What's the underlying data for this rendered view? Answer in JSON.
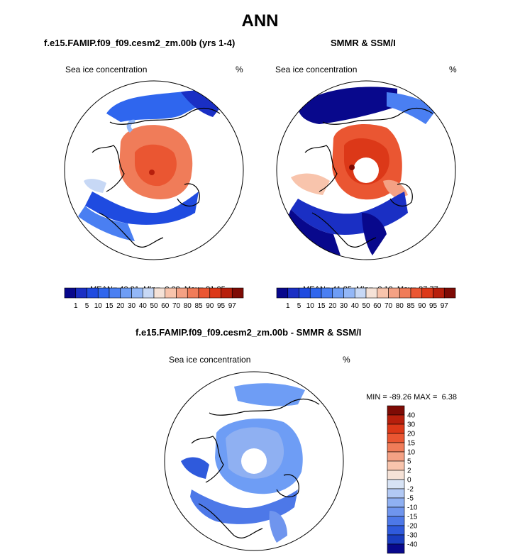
{
  "page": {
    "title": "ANN"
  },
  "chart_data": [
    {
      "type": "heatmap",
      "title": "f.e15.FAMIP.f09_f09.cesm2_zm.00b (yrs 1-4)",
      "subtitle_left": "Sea ice concentration",
      "units": "%",
      "stats": {
        "mean_label": "MEAN=",
        "mean": "40.91",
        "min_label": "Min=",
        "min": "0.00",
        "max_label": "Max=",
        "max": "91.05"
      },
      "colorbar": {
        "orientation": "horizontal",
        "levels": [
          "1",
          "5",
          "10",
          "15",
          "20",
          "30",
          "40",
          "50",
          "60",
          "70",
          "80",
          "85",
          "90",
          "95",
          "97"
        ],
        "colors": [
          "#08088c",
          "#1a2fc4",
          "#1f4be0",
          "#2f66ee",
          "#4a7ff2",
          "#6e9df5",
          "#93b7f7",
          "#c7d8f5",
          "#f5e2d7",
          "#f8c4ac",
          "#f4a184",
          "#f07c59",
          "#ea5632",
          "#dc3818",
          "#b71f0c",
          "#7e0b05"
        ]
      }
    },
    {
      "type": "heatmap",
      "title": "SMMR & SSM/I",
      "subtitle_left": "Sea ice concentration",
      "units": "%",
      "stats": {
        "mean_label": "MEAN=",
        "mean": "41.85",
        "min_label": "Min=",
        "min": "0.10",
        "max_label": "Max=",
        "max": "97.77"
      },
      "colorbar": {
        "orientation": "horizontal",
        "levels": [
          "1",
          "5",
          "10",
          "15",
          "20",
          "30",
          "40",
          "50",
          "60",
          "70",
          "80",
          "85",
          "90",
          "95",
          "97"
        ],
        "colors": [
          "#08088c",
          "#1a2fc4",
          "#1f4be0",
          "#2f66ee",
          "#4a7ff2",
          "#6e9df5",
          "#93b7f7",
          "#c7d8f5",
          "#f5e2d7",
          "#f8c4ac",
          "#f4a184",
          "#f07c59",
          "#ea5632",
          "#dc3818",
          "#b71f0c",
          "#7e0b05"
        ]
      }
    },
    {
      "type": "heatmap",
      "title": "f.e15.FAMIP.f09_f09.cesm2_zm.00b - SMMR & SSM/I",
      "subtitle_left": "Sea ice concentration",
      "units": "%",
      "stats": {
        "min_label": "MIN =",
        "min": "-89.26",
        "max_label": "MAX =",
        "max": "6.38"
      },
      "colorbar": {
        "orientation": "vertical",
        "levels": [
          "40",
          "30",
          "20",
          "15",
          "10",
          "5",
          "2",
          "0",
          "-2",
          "-5",
          "-10",
          "-15",
          "-20",
          "-30",
          "-40"
        ],
        "colors": [
          "#7e0b05",
          "#b71f0c",
          "#dc3818",
          "#ea5632",
          "#f07c59",
          "#f4a184",
          "#f8c4ac",
          "#f5e2d7",
          "#d7e3f5",
          "#b2c9f4",
          "#8fb0f2",
          "#6f95ee",
          "#4d78e8",
          "#2f5adc",
          "#1a3dc0",
          "#08088c"
        ]
      }
    }
  ],
  "colors": {
    "land_line": "#000000",
    "ocean": "#ffffff"
  }
}
